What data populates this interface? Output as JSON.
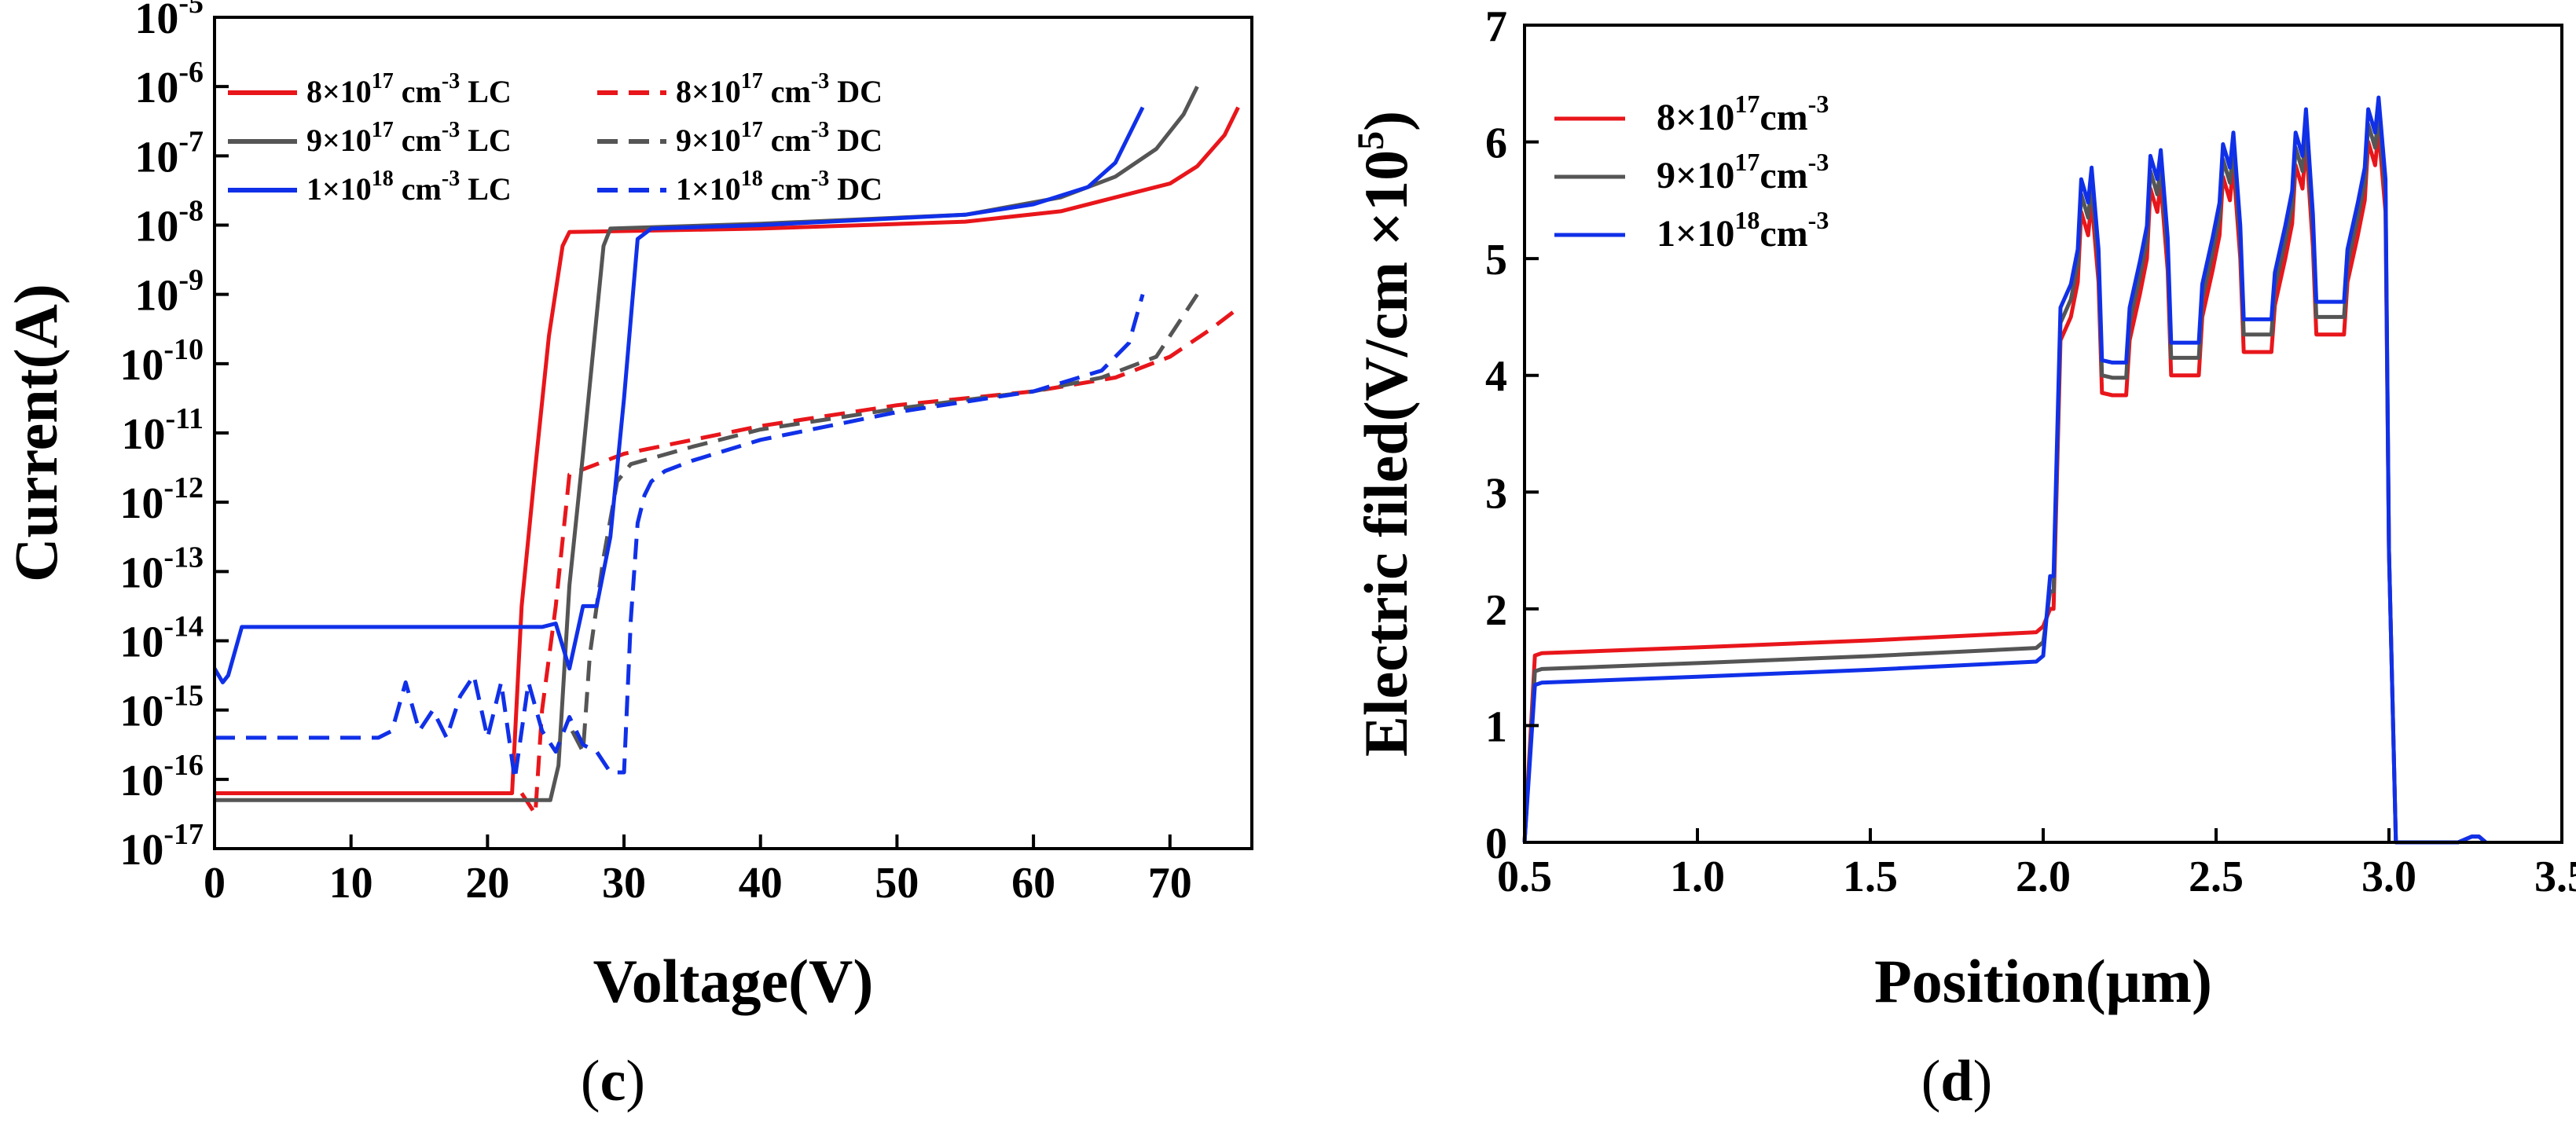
{
  "chart_data": [
    {
      "panel": "c",
      "type": "line",
      "title": "",
      "xlabel": "Voltage(V)",
      "ylabel": "Current(A)",
      "xlim": [
        0,
        76
      ],
      "yscale": "log",
      "ylim_exp": [
        -17,
        -5
      ],
      "xticks": [
        0,
        10,
        20,
        30,
        40,
        50,
        60,
        70
      ],
      "yticks_exp": [
        -17,
        -16,
        -15,
        -14,
        -13,
        -12,
        -11,
        -10,
        -9,
        -8,
        -7,
        -6,
        -5
      ],
      "legend_position": "top-left",
      "legend_columns": 2,
      "panel_label": "c",
      "series": [
        {
          "name_base": "8×10",
          "name_exp": "17",
          "name_unit": " cm",
          "name_unit_exp": "-3",
          "name_suffix": " LC",
          "color": "#e8161b",
          "dash": "solid",
          "x": [
            0,
            21.8,
            22.5,
            23.5,
            24.5,
            25.5,
            26,
            40,
            55,
            62,
            66,
            70,
            72,
            74,
            75
          ],
          "y_exp": [
            -16.2,
            -16.2,
            -13.5,
            -11.5,
            -9.6,
            -8.3,
            -8.1,
            -8.05,
            -7.95,
            -7.8,
            -7.6,
            -7.4,
            -7.15,
            -6.7,
            -6.3
          ]
        },
        {
          "name_base": "8×10",
          "name_exp": "17",
          "name_unit": " cm",
          "name_unit_exp": "-3",
          "name_suffix": " DC",
          "color": "#e8161b",
          "dash": "dashed",
          "x": [
            22.5,
            23.5,
            24,
            25,
            26,
            30,
            40,
            50,
            60,
            66,
            70,
            73,
            75
          ],
          "y_exp": [
            -16.2,
            -16.5,
            -15,
            -13.5,
            -11.6,
            -11.3,
            -10.9,
            -10.6,
            -10.4,
            -10.2,
            -9.9,
            -9.5,
            -9.2
          ]
        },
        {
          "name_base": "9×10",
          "name_exp": "17",
          "name_unit": " cm",
          "name_unit_exp": "-3",
          "name_suffix": " LC",
          "color": "#555555",
          "dash": "solid",
          "x": [
            0,
            24.6,
            25.2,
            26,
            27,
            28,
            28.5,
            29,
            40,
            55,
            62,
            66,
            69,
            71,
            72
          ],
          "y_exp": [
            -16.3,
            -16.3,
            -15.8,
            -13.2,
            -11.3,
            -9.3,
            -8.3,
            -8.05,
            -7.98,
            -7.85,
            -7.6,
            -7.3,
            -6.9,
            -6.4,
            -6.0
          ]
        },
        {
          "name_base": "9×10",
          "name_exp": "17",
          "name_unit": " cm",
          "name_unit_exp": "-3",
          "name_suffix": " DC",
          "color": "#555555",
          "dash": "dashed",
          "x": [
            26.2,
            27,
            27.5,
            28.5,
            29.5,
            30.5,
            35,
            40,
            50,
            60,
            65,
            69,
            72
          ],
          "y_exp": [
            -15.3,
            -15.6,
            -14.2,
            -12.8,
            -11.7,
            -11.45,
            -11.2,
            -10.95,
            -10.65,
            -10.4,
            -10.2,
            -9.9,
            -9.0
          ]
        },
        {
          "name_base": "1×10",
          "name_exp": "18",
          "name_unit": " cm",
          "name_unit_exp": "-3",
          "name_suffix": " LC",
          "color": "#1030e8",
          "dash": "solid",
          "x": [
            0,
            0.6,
            1,
            2,
            5,
            10,
            13,
            15,
            18,
            20,
            22,
            24,
            25,
            26,
            27,
            28,
            29,
            30,
            31,
            32,
            40,
            55,
            60,
            64,
            66,
            68
          ],
          "y_exp": [
            -14.4,
            -14.6,
            -14.5,
            -13.8,
            -13.8,
            -13.8,
            -13.8,
            -13.8,
            -13.8,
            -13.8,
            -13.8,
            -13.8,
            -13.75,
            -14.4,
            -13.5,
            -13.5,
            -12.5,
            -10.5,
            -8.2,
            -8.05,
            -8.0,
            -7.85,
            -7.7,
            -7.45,
            -7.1,
            -6.3
          ]
        },
        {
          "name_base": "1×10",
          "name_exp": "18",
          "name_unit": " cm",
          "name_unit_exp": "-3",
          "name_suffix": " DC",
          "color": "#1030e8",
          "dash": "dashed",
          "x": [
            0,
            5,
            10,
            12,
            13,
            14,
            15,
            16,
            17,
            18,
            19,
            20,
            21,
            22,
            23,
            24,
            25,
            26,
            27,
            28,
            29,
            29.5,
            30,
            30.5,
            31,
            31.5,
            32,
            33,
            35,
            40,
            50,
            60,
            65,
            67,
            68
          ],
          "y_exp": [
            -15.4,
            -15.4,
            -15.4,
            -15.4,
            -15.3,
            -14.6,
            -15.3,
            -15.0,
            -15.4,
            -14.8,
            -14.5,
            -15.4,
            -14.6,
            -16.0,
            -14.6,
            -15.3,
            -15.6,
            -15.1,
            -15.5,
            -15.6,
            -15.9,
            -15.9,
            -15.9,
            -13.7,
            -12.3,
            -11.9,
            -11.7,
            -11.55,
            -11.4,
            -11.1,
            -10.7,
            -10.4,
            -10.1,
            -9.7,
            -9.0
          ]
        }
      ]
    },
    {
      "panel": "d",
      "type": "line",
      "title": "",
      "xlabel": "Position(μm)",
      "ylabel_prefix": "Electric filed(V/cm ×10",
      "ylabel_exp": "5",
      "ylabel_suffix": ")",
      "xlim": [
        0.5,
        3.5
      ],
      "ylim": [
        0,
        7
      ],
      "xticks": [
        0.5,
        1.0,
        1.5,
        2.0,
        2.5,
        3.0,
        3.5
      ],
      "xtick_labels": [
        "0.5",
        "1.0",
        "1.5",
        "2.0",
        "2.5",
        "3.0",
        "3.5"
      ],
      "yticks": [
        0,
        1,
        2,
        3,
        4,
        5,
        6,
        7
      ],
      "legend_position": "top-left",
      "panel_label": "d",
      "series": [
        {
          "name_base": "8×10",
          "name_exp": "17",
          "name_unit": "cm",
          "name_unit_exp": "-3",
          "color": "#e8161b",
          "offset": 0.0
        },
        {
          "name_base": "9×10",
          "name_exp": "17",
          "name_unit": "cm",
          "name_unit_exp": "-3",
          "color": "#555555",
          "offset": 0.15
        },
        {
          "name_base": "1×10",
          "name_exp": "18",
          "name_unit": "cm",
          "name_unit_exp": "-3",
          "color": "#1030e8",
          "offset": 0.28
        }
      ],
      "base_profile": {
        "x": [
          0.5,
          0.53,
          0.55,
          1.0,
          1.5,
          1.98,
          2.0,
          2.02,
          2.03,
          2.05,
          2.08,
          2.1,
          2.11,
          2.13,
          2.14,
          2.16,
          2.17,
          2.2,
          2.24,
          2.25,
          2.28,
          2.3,
          2.31,
          2.33,
          2.34,
          2.36,
          2.37,
          2.4,
          2.45,
          2.46,
          2.49,
          2.51,
          2.52,
          2.54,
          2.55,
          2.57,
          2.58,
          2.61,
          2.66,
          2.67,
          2.7,
          2.72,
          2.73,
          2.75,
          2.76,
          2.78,
          2.79,
          2.82,
          2.87,
          2.88,
          2.91,
          2.93,
          2.94,
          2.96,
          2.97,
          2.99,
          3.0,
          3.02,
          3.04,
          3.2,
          3.24,
          3.26,
          3.28
        ],
        "y": [
          0.0,
          1.6,
          1.62,
          1.67,
          1.73,
          1.8,
          1.85,
          2.0,
          2.0,
          4.3,
          4.5,
          4.8,
          5.4,
          5.2,
          5.5,
          4.8,
          3.85,
          3.83,
          3.83,
          4.3,
          4.7,
          5.0,
          5.6,
          5.4,
          5.65,
          4.9,
          4.0,
          4.0,
          4.0,
          4.5,
          4.9,
          5.2,
          5.7,
          5.5,
          5.8,
          5.0,
          4.2,
          4.2,
          4.2,
          4.6,
          5.0,
          5.3,
          5.8,
          5.6,
          6.0,
          5.1,
          4.35,
          4.35,
          4.35,
          4.8,
          5.2,
          5.5,
          6.0,
          5.8,
          6.1,
          5.4,
          2.5,
          0.0,
          0.0,
          0.0,
          0.05,
          0.05,
          0.0
        ]
      }
    }
  ]
}
